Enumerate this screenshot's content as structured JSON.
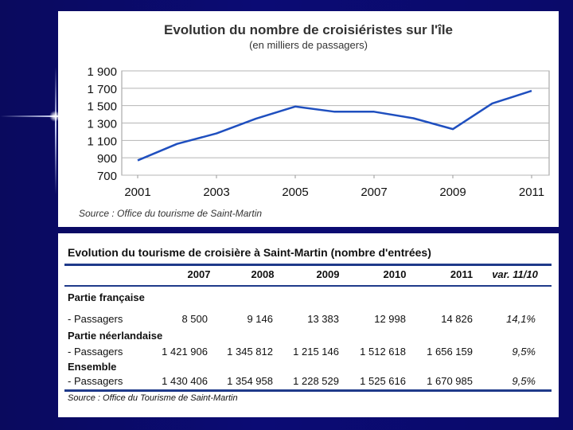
{
  "chart_data": {
    "type": "line",
    "title": "Evolution du nombre de croisiéristes sur l'île",
    "subtitle": "(en milliers de passagers)",
    "source": "Source : Office du tourisme de Saint-Martin",
    "x": [
      2001,
      2002,
      2003,
      2004,
      2005,
      2006,
      2007,
      2008,
      2009,
      2010,
      2011
    ],
    "x_tick_labels": [
      "2001",
      "2003",
      "2005",
      "2007",
      "2009",
      "2011"
    ],
    "y_tick_labels": [
      "1 900",
      "1 700",
      "1 500",
      "1 300",
      "1 100",
      "900",
      "700"
    ],
    "ylim": [
      700,
      1900
    ],
    "series": [
      {
        "name": "Croisiéristes",
        "color": "#1f4fbf",
        "values": [
          870,
          1060,
          1180,
          1350,
          1490,
          1430,
          1430,
          1355,
          1230,
          1525,
          1670
        ]
      }
    ],
    "grid": true
  },
  "table": {
    "title": "Evolution du tourisme de croisière à Saint-Martin (nombre d'entrées)",
    "headers": [
      "2007",
      "2008",
      "2009",
      "2010",
      "2011",
      "var. 11/10"
    ],
    "groups": [
      {
        "name": "Partie française",
        "row_label": "- Passagers",
        "values": [
          "8 500",
          "9 146",
          "13 383",
          "12 998",
          "14 826",
          "14,1%"
        ]
      },
      {
        "name": "Partie néerlandaise",
        "row_label": "- Passagers",
        "values": [
          "1 421 906",
          "1 345 812",
          "1 215 146",
          "1 512 618",
          "1 656 159",
          "9,5%"
        ]
      },
      {
        "name": "Ensemble",
        "row_label": "- Passagers",
        "values": [
          "1 430 406",
          "1 354 958",
          "1 228 529",
          "1 525 616",
          "1 670 985",
          "9,5%"
        ]
      }
    ],
    "source": "Source : Office du Tourisme de Saint-Martin"
  }
}
